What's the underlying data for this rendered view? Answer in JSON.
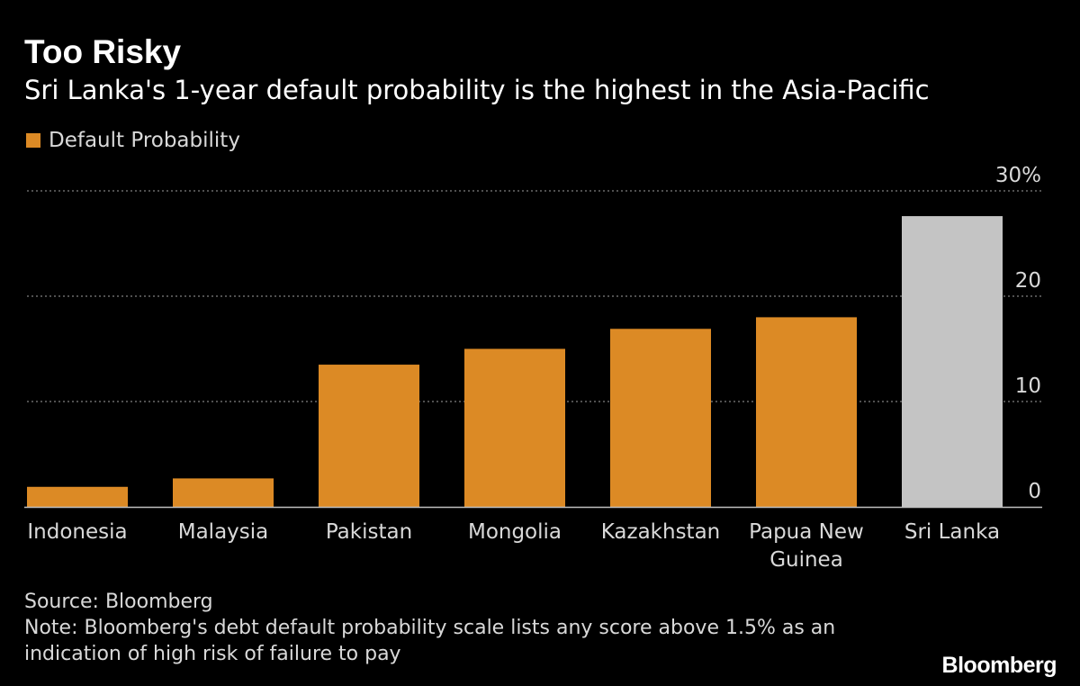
{
  "title": "Too Risky",
  "subtitle": "Sri Lanka's 1-year default probability is the highest in the Asia-Pacific",
  "legend": {
    "label": "Default Probability"
  },
  "colors": {
    "background": "#000000",
    "bar": "#dc8a25",
    "highlight_bar": "#c4c4c4",
    "grid": "#7f7f7f",
    "text": "#ffffff",
    "muted_text": "#d9d9d9"
  },
  "chart_data": {
    "type": "bar",
    "categories": [
      "Indonesia",
      "Malaysia",
      "Pakistan",
      "Mongolia",
      "Kazakhstan",
      "Papua New Guinea",
      "Sri Lanka"
    ],
    "category_labels": [
      [
        "Indonesia"
      ],
      [
        "Malaysia"
      ],
      [
        "Pakistan"
      ],
      [
        "Mongolia"
      ],
      [
        "Kazakhstan"
      ],
      [
        "Papua New",
        "Guinea"
      ],
      [
        "Sri Lanka"
      ]
    ],
    "series": [
      {
        "name": "Default Probability",
        "values": [
          1.9,
          2.7,
          13.5,
          15.0,
          16.9,
          18.0,
          27.6
        ]
      }
    ],
    "highlight": "Sri Lanka",
    "ylim": [
      0,
      30
    ],
    "yticks": [
      0,
      10,
      20,
      30
    ],
    "ytick_labels": [
      "0",
      "10",
      "20",
      "30%"
    ],
    "y_axis_position": "right",
    "grid": true,
    "legend_position": "top-left",
    "xlabel": "",
    "ylabel": ""
  },
  "footer": {
    "source": "Source: Bloomberg",
    "note_line1": "Note: Bloomberg's debt default probability scale lists any score above 1.5% as an",
    "note_line2": "indication of high risk of failure to pay"
  },
  "brand": "Bloomberg"
}
